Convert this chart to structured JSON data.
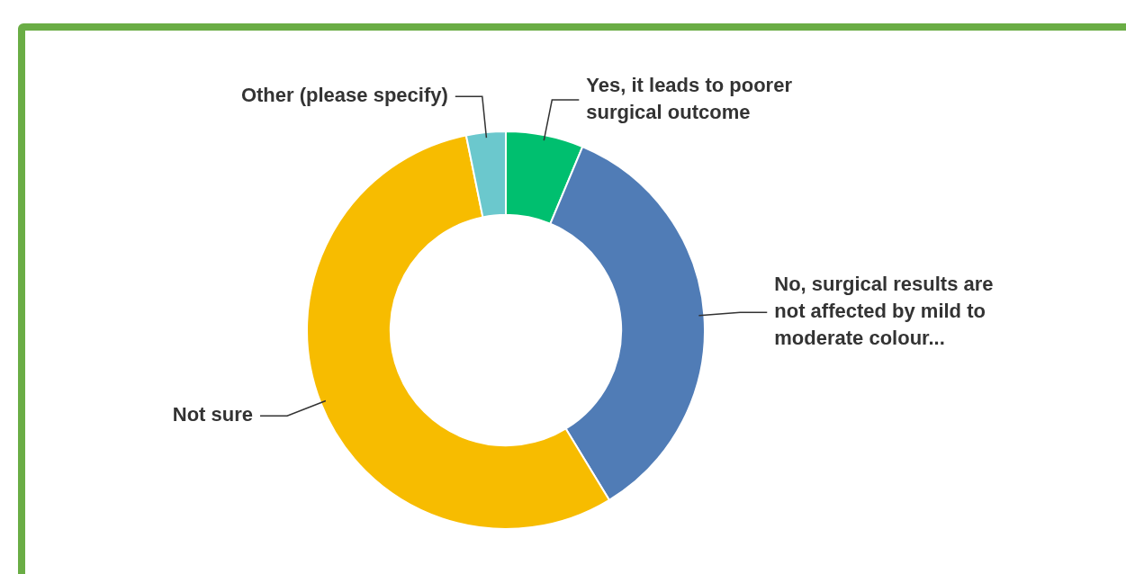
{
  "chart_data": {
    "type": "donut",
    "categories": [
      "Yes, it leads to poorer surgical outcome",
      "No, surgical results are not affected by mild to moderate colour...",
      "Not sure",
      "Other (please specify)"
    ],
    "values": [
      6.3,
      35.0,
      55.5,
      3.2
    ],
    "colors": [
      "#00bf6f",
      "#507cb6",
      "#f7bc00",
      "#6bc8cd"
    ],
    "legend": false
  }
}
